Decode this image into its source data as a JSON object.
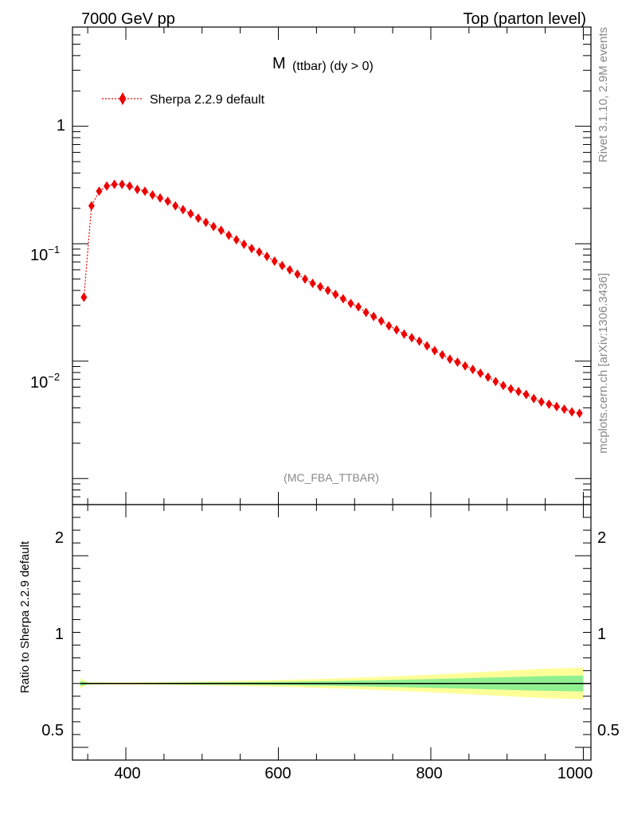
{
  "header": {
    "left": "7000 GeV pp",
    "right": "Top (parton level)"
  },
  "side_labels": {
    "rivet": "Rivet 3.1.10,  2.9M events",
    "mcplots": "mcplots.cern.ch [arXiv:1306.3436]"
  },
  "main_plot": {
    "title_main": "M",
    "title_sub": "(ttbar) (dy > 0)",
    "watermark": "(MC_FBA_TTBAR)",
    "legend_label": "Sherpa 2.2.9 default",
    "y_tick_labels": [
      {
        "base": "1",
        "exp": ""
      },
      {
        "base": "10",
        "exp": "−1"
      },
      {
        "base": "10",
        "exp": "−2"
      }
    ]
  },
  "ratio_plot": {
    "ylabel": "Ratio to Sherpa 2.2.9 default",
    "y_tick_labels": [
      "2",
      "1",
      "0.5"
    ]
  },
  "x_tick_labels": [
    "400",
    "600",
    "800",
    "1000"
  ],
  "colors": {
    "series": "#ee0000",
    "band_inner": "#90f090",
    "band_outer": "#ffff99",
    "watermark": "#888888"
  },
  "chart_data": {
    "type": "scatter",
    "title": "M (ttbar) (dy > 0)",
    "xlim": [
      330,
      1010
    ],
    "ylog": true,
    "ylim": [
      0.0006,
      7
    ],
    "ratio_ylim": [
      0.4,
      2.4
    ],
    "series": [
      {
        "name": "Sherpa 2.2.9 default",
        "x": [
          345,
          355,
          365,
          375,
          385,
          395,
          405,
          415,
          425,
          435,
          445,
          455,
          465,
          475,
          485,
          495,
          505,
          515,
          525,
          535,
          545,
          555,
          565,
          575,
          585,
          595,
          605,
          615,
          625,
          635,
          645,
          655,
          665,
          675,
          685,
          695,
          705,
          715,
          725,
          735,
          745,
          755,
          765,
          775,
          785,
          795,
          805,
          815,
          825,
          835,
          845,
          855,
          865,
          875,
          885,
          895,
          905,
          915,
          925,
          935,
          945,
          955,
          965,
          975,
          985,
          995
        ],
        "y": [
          0.035,
          0.21,
          0.28,
          0.31,
          0.32,
          0.32,
          0.31,
          0.29,
          0.28,
          0.26,
          0.245,
          0.23,
          0.21,
          0.195,
          0.18,
          0.165,
          0.152,
          0.14,
          0.13,
          0.118,
          0.108,
          0.099,
          0.091,
          0.085,
          0.078,
          0.071,
          0.065,
          0.06,
          0.055,
          0.05,
          0.046,
          0.043,
          0.04,
          0.037,
          0.034,
          0.031,
          0.029,
          0.026,
          0.024,
          0.022,
          0.02,
          0.0185,
          0.017,
          0.0158,
          0.0148,
          0.0135,
          0.0123,
          0.0113,
          0.0104,
          0.0098,
          0.0091,
          0.0085,
          0.0079,
          0.0073,
          0.0067,
          0.0062,
          0.0058,
          0.0055,
          0.0052,
          0.0048,
          0.0045,
          0.0043,
          0.0041,
          0.0039,
          0.0037,
          0.0036
        ]
      }
    ],
    "ratio_band": {
      "x_edges": [
        340,
        350,
        400,
        450,
        500,
        550,
        600,
        650,
        700,
        750,
        800,
        850,
        900,
        950,
        1000
      ],
      "inner_halfwidth": [
        0.02,
        0.006,
        0.004,
        0.006,
        0.008,
        0.01,
        0.013,
        0.017,
        0.022,
        0.028,
        0.034,
        0.042,
        0.05,
        0.058,
        0.062
      ],
      "outer_halfwidth": [
        0.04,
        0.01,
        0.008,
        0.011,
        0.015,
        0.02,
        0.026,
        0.034,
        0.044,
        0.056,
        0.068,
        0.084,
        0.1,
        0.116,
        0.124
      ]
    },
    "x_ticks": [
      400,
      600,
      800,
      1000
    ],
    "y_ticks": [
      1,
      0.1,
      0.01
    ],
    "ratio_ticks": [
      2,
      1,
      0.5
    ]
  }
}
